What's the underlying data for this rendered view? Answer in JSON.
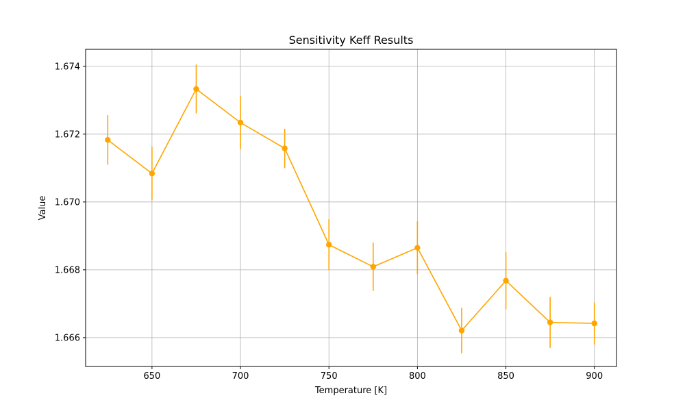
{
  "chart_data": {
    "type": "line",
    "title": "Sensitivity Keff Results",
    "xlabel": "Temperature [K]",
    "ylabel": "Value",
    "xlim": [
      612.5,
      912.5
    ],
    "ylim": [
      1.66515,
      1.6745
    ],
    "grid": true,
    "x_ticks": [
      650,
      700,
      750,
      800,
      850,
      900
    ],
    "y_ticks": [
      1.666,
      1.668,
      1.67,
      1.672,
      1.674
    ],
    "x_tick_labels": [
      "650",
      "700",
      "750",
      "800",
      "850",
      "900"
    ],
    "y_tick_labels": [
      "1.666",
      "1.668",
      "1.670",
      "1.672",
      "1.674"
    ],
    "series": [
      {
        "color": "#ffa500",
        "x": [
          625,
          650,
          675,
          700,
          725,
          750,
          775,
          800,
          825,
          850,
          875,
          900
        ],
        "y": [
          1.67183,
          1.67084,
          1.67333,
          1.67234,
          1.67158,
          1.66874,
          1.66809,
          1.66865,
          1.66621,
          1.66768,
          1.66645,
          1.66642
        ],
        "err": [
          0.00073,
          0.00079,
          0.00072,
          0.00078,
          0.00058,
          0.00075,
          0.00071,
          0.00078,
          0.00067,
          0.00084,
          0.00075,
          0.00062
        ]
      }
    ]
  }
}
